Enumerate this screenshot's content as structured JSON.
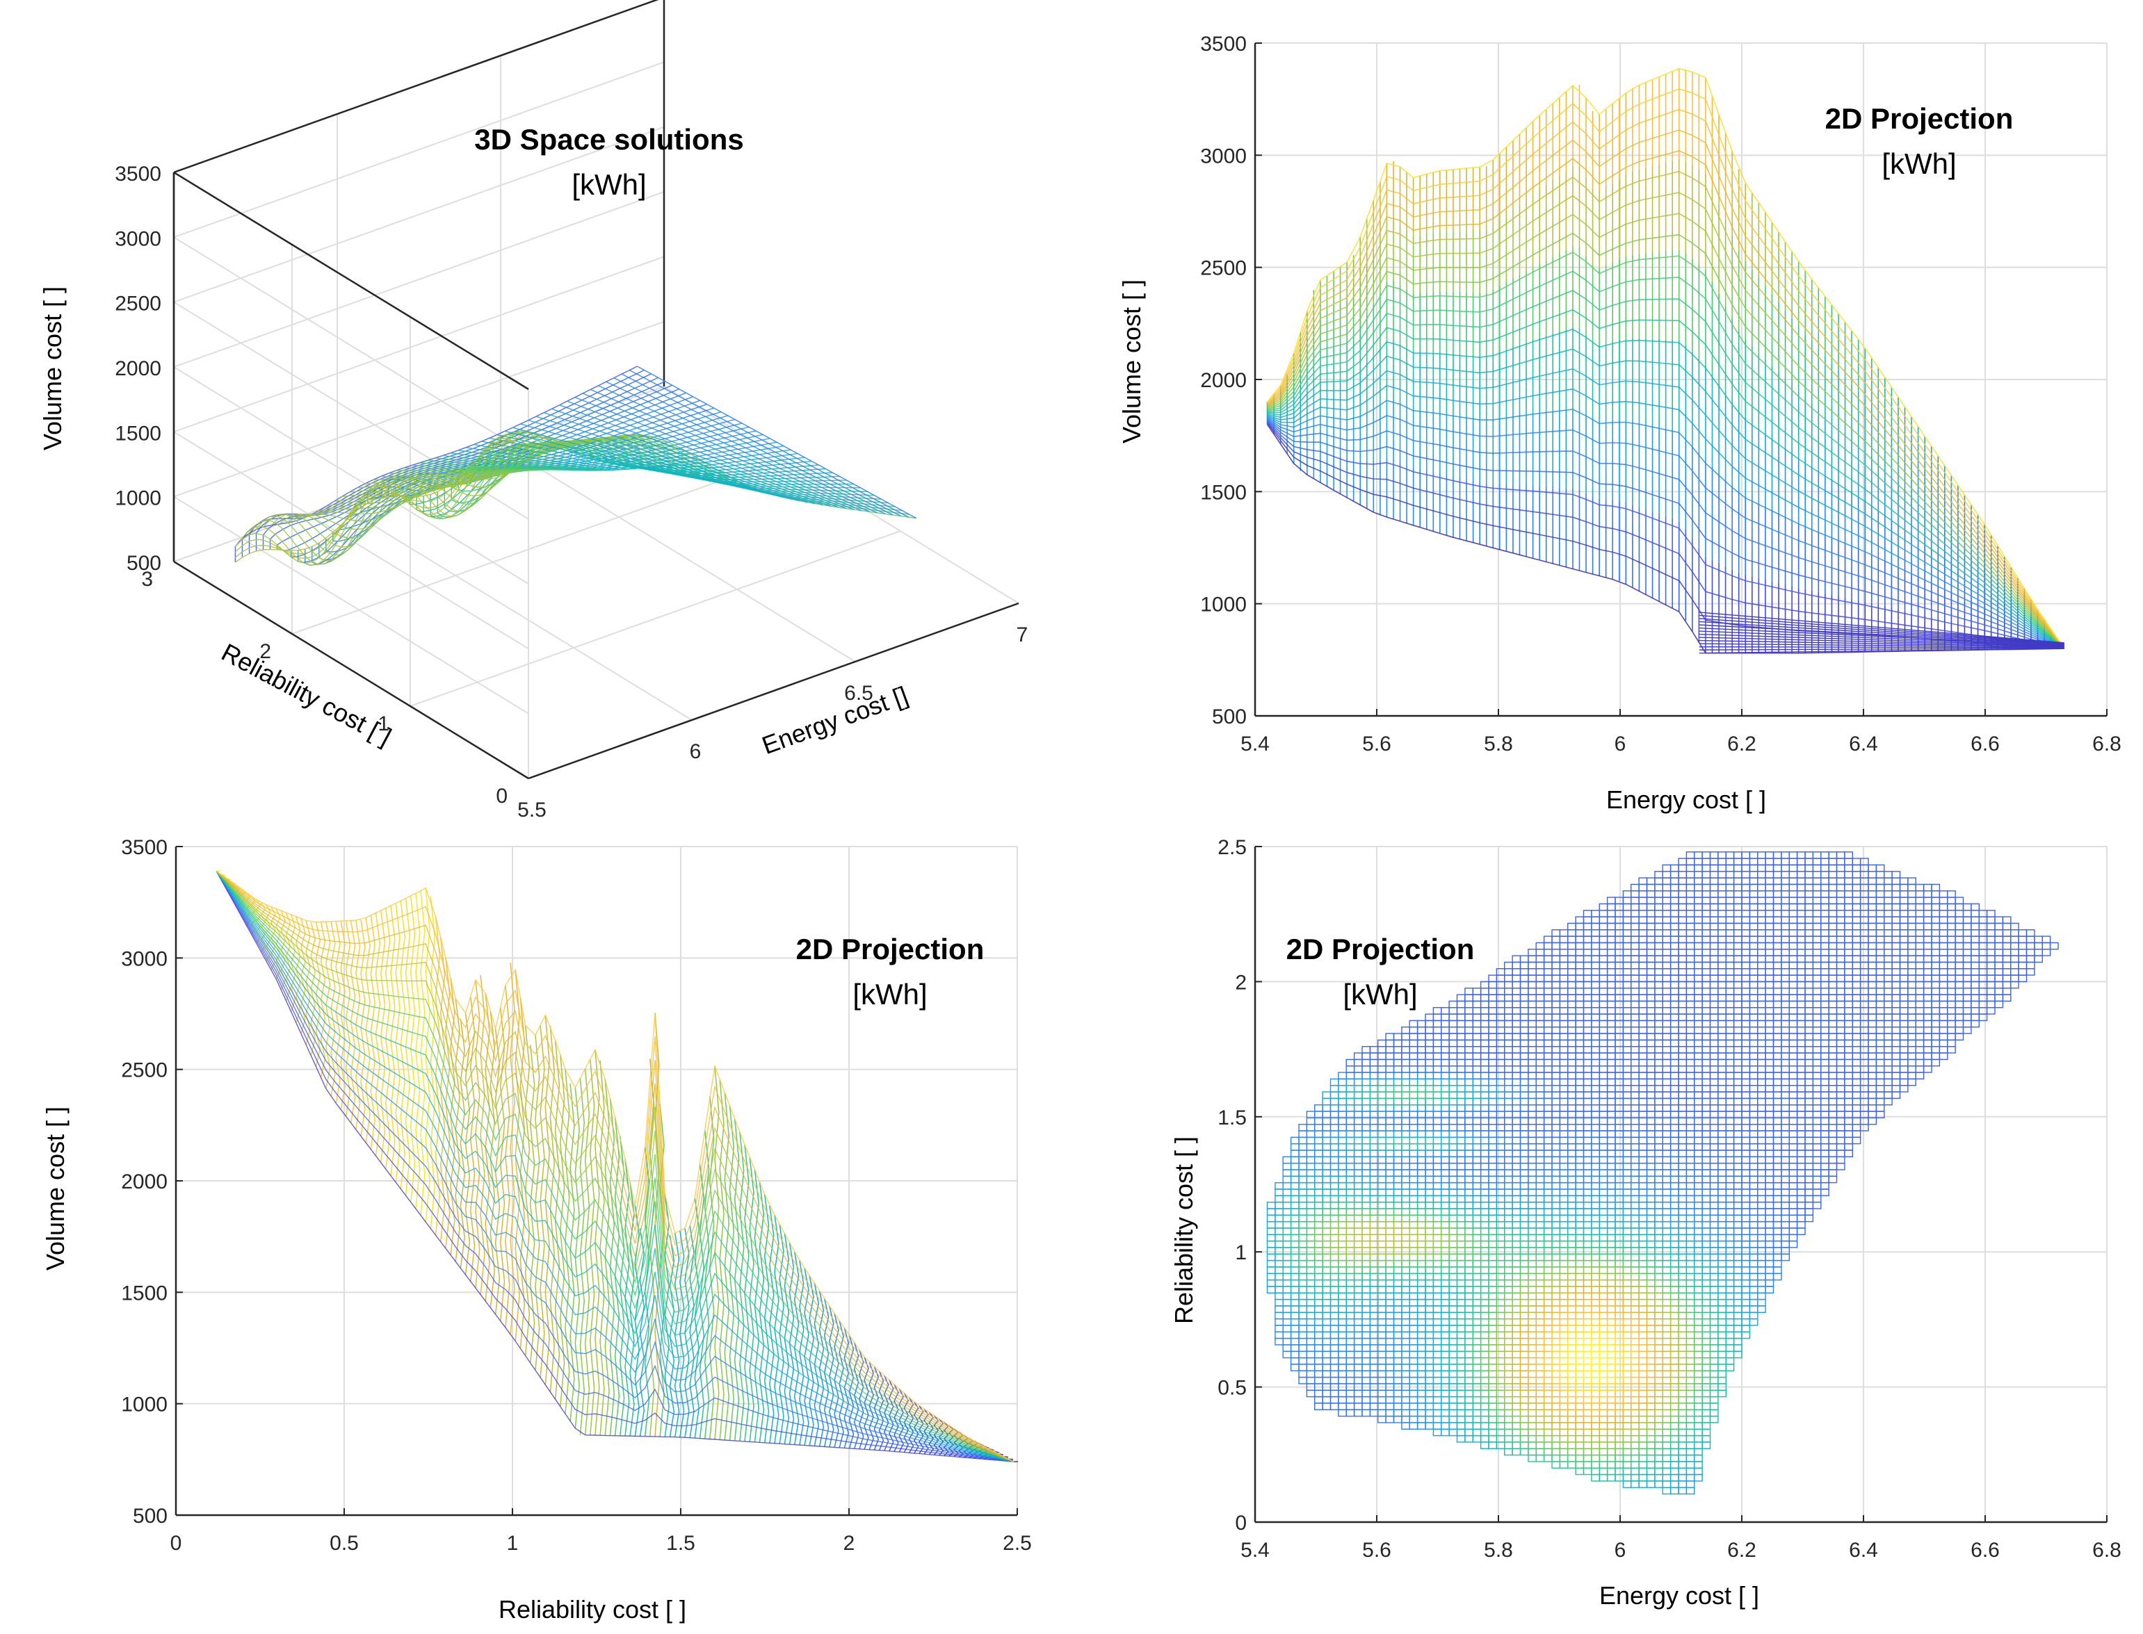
{
  "chart_data": [
    {
      "id": "panel-3d",
      "type": "surface",
      "title": "3D Space solutions",
      "unit": "[kWh]",
      "xlabel": "Energy cost []",
      "ylabel": "Reliability cost [ ]",
      "zlabel": "Volume cost [ ]",
      "xlim": [
        5.5,
        7
      ],
      "ylim": [
        0,
        3
      ],
      "zlim": [
        500,
        3500
      ],
      "xticks": [
        "5.5",
        "6",
        "6.5",
        "7"
      ],
      "yticks": [
        "0",
        "1",
        "2",
        "3"
      ],
      "zticks": [
        "500",
        "1000",
        "1500",
        "2000",
        "2500",
        "3000",
        "3500"
      ],
      "colormap": "parula"
    },
    {
      "id": "panel-energy-volume",
      "type": "surface-projection",
      "title": "2D Projection",
      "unit": "[kWh]",
      "xlabel": "Energy cost [ ]",
      "ylabel": "Volume cost [ ]",
      "xlim": [
        5.4,
        6.8
      ],
      "ylim": [
        500,
        3500
      ],
      "xticks": [
        "5.4",
        "5.6",
        "5.8",
        "6",
        "6.2",
        "6.4",
        "6.6",
        "6.8"
      ],
      "yticks": [
        "500",
        "1000",
        "1500",
        "2000",
        "2500",
        "3000",
        "3500"
      ],
      "colormap": "parula"
    },
    {
      "id": "panel-reliability-volume",
      "type": "surface-projection",
      "title": "2D Projection",
      "unit": "[kWh]",
      "xlabel": "Reliability cost [ ]",
      "ylabel": "Volume cost [ ]",
      "xlim": [
        0,
        2.5
      ],
      "ylim": [
        500,
        3500
      ],
      "xticks": [
        "0",
        "0.5",
        "1",
        "1.5",
        "2",
        "2.5"
      ],
      "yticks": [
        "500",
        "1000",
        "1500",
        "2000",
        "2500",
        "3000",
        "3500"
      ],
      "colormap": "parula"
    },
    {
      "id": "panel-energy-reliability",
      "type": "surface-projection",
      "title": "2D Projection",
      "unit": "[kWh]",
      "xlabel": "Energy cost [ ]",
      "ylabel": "Reliability cost [ ]",
      "xlim": [
        5.4,
        6.8
      ],
      "ylim": [
        0,
        2.5
      ],
      "xticks": [
        "5.4",
        "5.6",
        "5.8",
        "6",
        "6.2",
        "6.4",
        "6.6",
        "6.8"
      ],
      "yticks": [
        "0",
        "0.5",
        "1",
        "1.5",
        "2",
        "2.5"
      ],
      "colormap": "parula"
    }
  ],
  "colors": {
    "parula": [
      "#3e26a8",
      "#4353eb",
      "#2b7ef5",
      "#19a4db",
      "#12bdb0",
      "#3ec978",
      "#98c83e",
      "#ddb42f",
      "#fbc13c",
      "#f9fb15"
    ]
  }
}
